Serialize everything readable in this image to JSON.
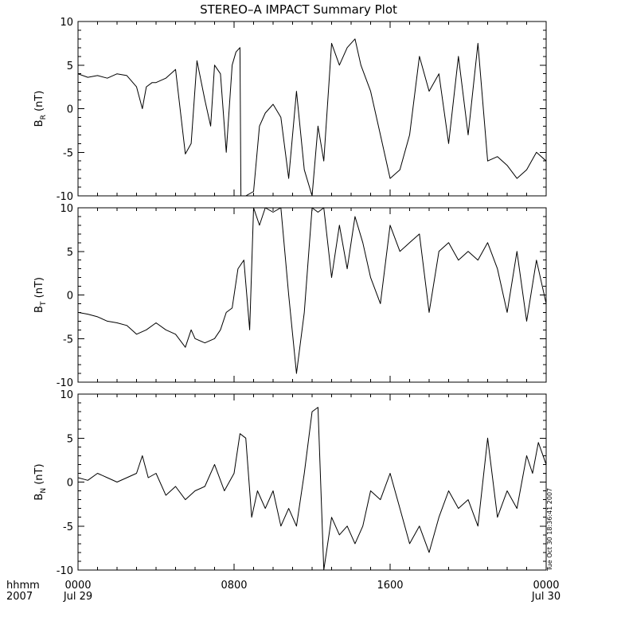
{
  "title": "STEREO–A IMPACT Summary Plot",
  "timestamp": "Tue Oct 30 18:36:41 2007",
  "chart_data": [
    {
      "type": "line",
      "ylabel_main": "B",
      "ylabel_sub": "R",
      "ylabel_unit": "(nT)",
      "ylim": [
        -10,
        10
      ],
      "yticks": [
        10,
        5,
        0,
        -5,
        -10
      ],
      "x_hours": [
        0,
        0.5,
        1,
        1.5,
        2,
        2.5,
        3,
        3.3,
        3.5,
        3.8,
        4,
        4.5,
        5,
        5.5,
        5.8,
        6.1,
        6.5,
        6.8,
        7,
        7.3,
        7.6,
        7.9,
        8.1,
        8.3,
        8.35,
        8.6,
        9,
        9.3,
        9.6,
        10,
        10.4,
        10.8,
        11.2,
        11.6,
        12,
        12.3,
        12.6,
        13,
        13.4,
        13.8,
        14.2,
        14.5,
        15,
        15.5,
        16,
        16.5,
        17,
        17.5,
        18,
        18.5,
        19,
        19.5,
        20,
        20.5,
        21,
        21.5,
        22,
        22.5,
        23,
        23.5,
        24
      ],
      "values": [
        4,
        3.6,
        3.8,
        3.5,
        4,
        3.8,
        2.5,
        0,
        2.5,
        3,
        3,
        3.5,
        4.5,
        -5.2,
        -4,
        5.5,
        1,
        -2,
        5,
        4,
        -5,
        5,
        6.5,
        7,
        -10,
        -10,
        -9.5,
        -2,
        -0.5,
        0.5,
        -1,
        -8,
        2,
        -7,
        -10,
        -2,
        -6,
        7.5,
        5,
        7,
        8,
        5,
        2,
        -3,
        -8,
        -7,
        -3,
        6,
        2,
        4,
        -4,
        6,
        -3,
        7.5,
        -6,
        -5.5,
        -6.5,
        -8,
        -7,
        -5,
        -6
      ],
      "series_name": "B_R"
    },
    {
      "type": "line",
      "ylabel_main": "B",
      "ylabel_sub": "T",
      "ylabel_unit": "(nT)",
      "ylim": [
        -10,
        10
      ],
      "yticks": [
        10,
        5,
        0,
        -5,
        -10
      ],
      "x_hours": [
        0,
        0.5,
        1,
        1.5,
        2,
        2.5,
        3,
        3.5,
        4,
        4.5,
        5,
        5.5,
        5.8,
        6,
        6.5,
        7,
        7.3,
        7.6,
        7.9,
        8.2,
        8.5,
        8.8,
        9,
        9.3,
        9.6,
        10,
        10.4,
        10.8,
        11.2,
        11.6,
        12,
        12.3,
        12.6,
        13,
        13.4,
        13.8,
        14.2,
        14.6,
        15,
        15.5,
        16,
        16.5,
        17,
        17.5,
        18,
        18.5,
        19,
        19.5,
        20,
        20.5,
        21,
        21.5,
        22,
        22.5,
        23,
        23.5,
        24
      ],
      "values": [
        -2,
        -2.2,
        -2.5,
        -3,
        -3.2,
        -3.5,
        -4.5,
        -4,
        -3.2,
        -4,
        -4.5,
        -6,
        -4,
        -5,
        -5.5,
        -5,
        -4,
        -2,
        -1.5,
        3,
        4,
        -4,
        10,
        8,
        10,
        9.5,
        10,
        0,
        -9,
        -2,
        10,
        9.5,
        10,
        2,
        8,
        3,
        9,
        6,
        2,
        -1,
        8,
        5,
        6,
        7,
        -2,
        5,
        6,
        4,
        5,
        4,
        6,
        3,
        -2,
        5,
        -3,
        4,
        -1
      ],
      "series_name": "B_T"
    },
    {
      "type": "line",
      "ylabel_main": "B",
      "ylabel_sub": "N",
      "ylabel_unit": "(nT)",
      "ylim": [
        -10,
        10
      ],
      "yticks": [
        10,
        5,
        0,
        -5,
        -10
      ],
      "x_hours": [
        0,
        0.5,
        1,
        1.5,
        2,
        2.5,
        3,
        3.3,
        3.6,
        4,
        4.5,
        5,
        5.5,
        6,
        6.5,
        7,
        7.5,
        8,
        8.3,
        8.6,
        8.9,
        9.2,
        9.6,
        10,
        10.4,
        10.8,
        11.2,
        11.6,
        12,
        12.3,
        12.6,
        13,
        13.4,
        13.8,
        14.2,
        14.6,
        15,
        15.5,
        16,
        16.5,
        17,
        17.5,
        18,
        18.5,
        19,
        19.5,
        20,
        20.5,
        21,
        21.5,
        22,
        22.5,
        23,
        23.3,
        23.6,
        24
      ],
      "values": [
        0.5,
        0.2,
        1,
        0.5,
        0,
        0.5,
        1,
        3,
        0.5,
        1,
        -1.5,
        -0.5,
        -2,
        -1,
        -0.5,
        2,
        -1,
        1,
        5.5,
        5,
        -4,
        -1,
        -3,
        -1,
        -5,
        -3,
        -5,
        1,
        8,
        8.5,
        -10,
        -4,
        -6,
        -5,
        -7,
        -5,
        -1,
        -2,
        1,
        -3,
        -7,
        -5,
        -8,
        -4,
        -1,
        -3,
        -2,
        -5,
        5,
        -4,
        -1,
        -3,
        3,
        1,
        4.5,
        2
      ],
      "series_name": "B_N"
    }
  ],
  "x_axis": {
    "row1_label": "hhmm",
    "row2_label": "2007",
    "ticks": [
      {
        "hours": 0,
        "top": "0000",
        "bottom": "Jul 29"
      },
      {
        "hours": 8,
        "top": "0800",
        "bottom": ""
      },
      {
        "hours": 16,
        "top": "1600",
        "bottom": ""
      },
      {
        "hours": 24,
        "top": "0000",
        "bottom": "Jul 30"
      }
    ],
    "range_hours": [
      0,
      24
    ]
  },
  "colors": {
    "line": "#000000",
    "background": "#ffffff"
  }
}
